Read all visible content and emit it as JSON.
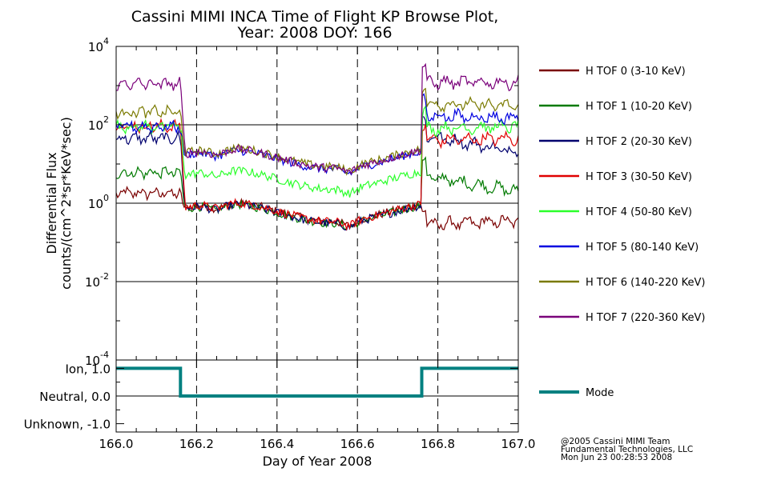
{
  "chart_data": [
    {
      "type": "line",
      "title": [
        "Cassini MIMI INCA Time of Flight KP Browse Plot,",
        "Year: 2008 DOY: 166"
      ],
      "xlabel": "Day of Year 2008",
      "ylabel": [
        "Differential Flux",
        "counts/(cm^2*sr*KeV*sec)"
      ],
      "yscale": "log",
      "xlim": [
        166.0,
        167.0
      ],
      "ylim": [
        0.0001,
        10000
      ],
      "x_ticks": [
        "166.0",
        "166.2",
        "166.4",
        "166.6",
        "166.8",
        "167.0"
      ],
      "y_ticks": [
        {
          "base": "10",
          "exp": "4",
          "value": 10000
        },
        {
          "base": "10",
          "exp": "2",
          "value": 100
        },
        {
          "base": "10",
          "exp": "0",
          "value": 1
        },
        {
          "base": "10",
          "exp": "-2",
          "value": 0.01
        },
        {
          "base": "10",
          "exp": "-4",
          "value": 0.0001
        }
      ],
      "hgrid": [
        100,
        1,
        0.01
      ],
      "vlines_dashed": [
        166.2,
        166.4,
        166.6,
        166.8
      ],
      "boundaries": [
        166.16,
        166.76
      ],
      "legend_placement": "right",
      "series": [
        {
          "name": "H TOF 0 (3-10 KeV)",
          "color": "#7a0000",
          "levels": [
            1.8,
            0.6,
            0.28,
            0.35
          ]
        },
        {
          "name": "H TOF 1 (10-20 KeV)",
          "color": "#007a00",
          "levels": [
            6.0,
            0.55,
            5.0,
            2.0
          ]
        },
        {
          "name": "H TOF 2 (20-30 KeV)",
          "color": "#00006e",
          "levels": [
            45,
            0.55,
            55,
            20
          ]
        },
        {
          "name": "H TOF 3 (30-50 KeV)",
          "color": "#e00000",
          "levels": [
            90,
            0.6,
            40,
            45
          ]
        },
        {
          "name": "H TOF 4 (50-80 KeV)",
          "color": "#2bff2b",
          "levels": [
            90,
            4.0,
            80,
            90
          ]
        },
        {
          "name": "H TOF 5 (80-140 KeV)",
          "color": "#0000e0",
          "levels": [
            90,
            13,
            170,
            150
          ]
        },
        {
          "name": "H TOF 6 (140-220 KeV)",
          "color": "#7a7a00",
          "levels": [
            210,
            15,
            350,
            300
          ]
        },
        {
          "name": "H TOF 7 (220-360 KeV)",
          "color": "#7a007a",
          "levels": [
            1100,
            14,
            1200,
            1200
          ]
        }
      ]
    },
    {
      "type": "line",
      "ylabel_ticks": [
        "Ion, 1.0",
        "Neutral, 0.0",
        "Unknown, -1.0"
      ],
      "ylim": [
        -1.3,
        1.3
      ],
      "xlim": [
        166.0,
        167.0
      ],
      "series": [
        {
          "name": "Mode",
          "color": "#008080",
          "x": [
            166.0,
            166.16,
            166.16,
            166.76,
            166.76,
            167.0
          ],
          "y": [
            1.0,
            1.0,
            0.0,
            0.0,
            1.0,
            1.0
          ]
        }
      ]
    }
  ],
  "credits": [
    "@2005 Cassini MIMI Team",
    "Fundamental Technologies, LLC",
    "Mon Jun 23 00:28:53 2008"
  ]
}
